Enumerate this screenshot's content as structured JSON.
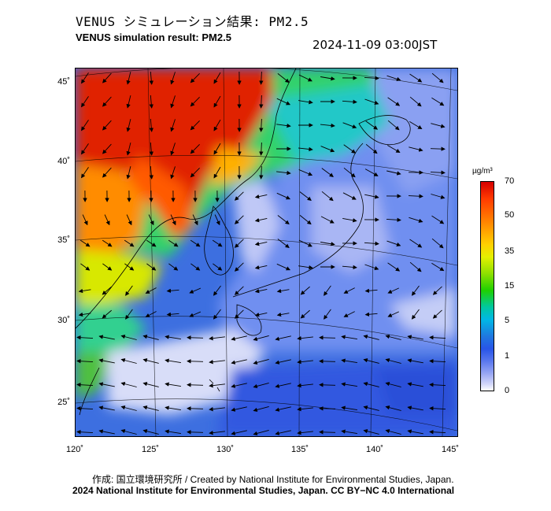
{
  "title_jp": "VENUS シミュレーション結果: PM2.5",
  "title_en": "VENUS simulation result: PM2.5",
  "timestamp": "2024-11-09 03:00JST",
  "lat_labels": [
    "45˚",
    "40˚",
    "35˚",
    "30˚",
    "25˚"
  ],
  "lon_labels": [
    "120˚",
    "125˚",
    "130˚",
    "135˚",
    "140˚",
    "145˚"
  ],
  "colorbar": {
    "unit": "µg/m³",
    "ticks": [
      "70",
      "50",
      "35",
      "15",
      "5",
      "1",
      "0"
    ],
    "colors": [
      "#d60000",
      "#ff8a00",
      "#ffd000",
      "#1fd000",
      "#00b8e6",
      "#2855e8",
      "#ffffff"
    ]
  },
  "credit": "作成: 国立環境研究所 / Created by National Institute for Environmental Studies, Japan.",
  "license": "2024 National Institute for Environmental Studies, Japan. CC BY−NC 4.0 International"
}
